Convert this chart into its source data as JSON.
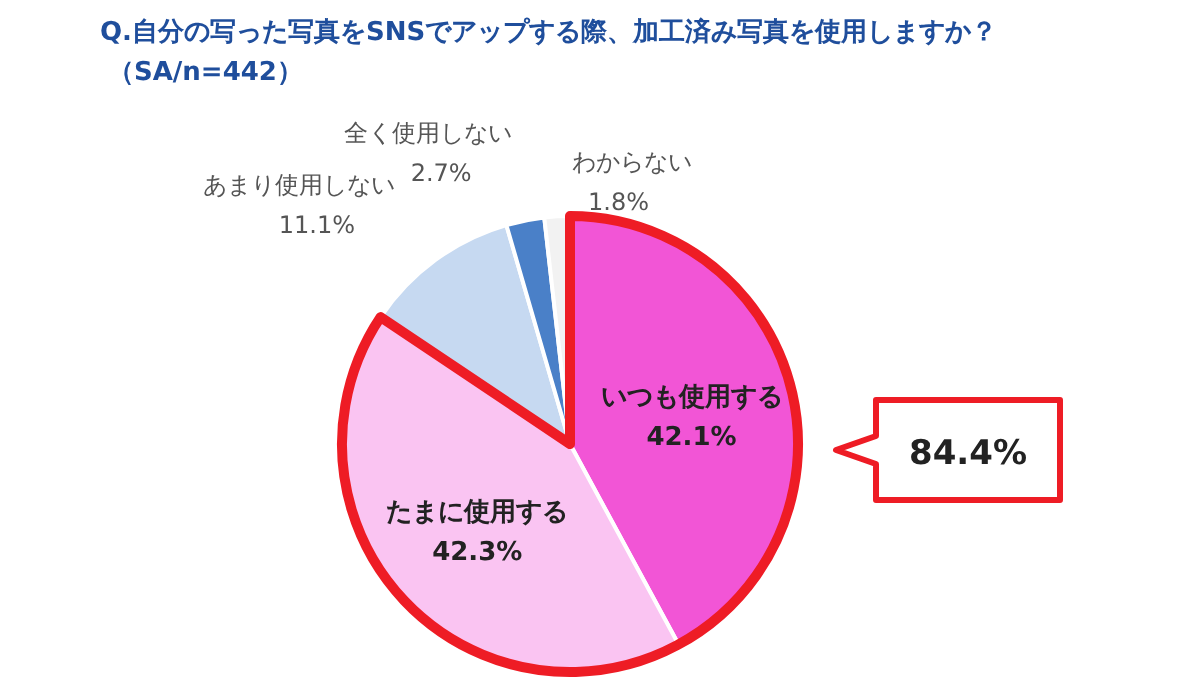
{
  "chart_data": {
    "type": "pie",
    "title": "Q.自分の写った写真をSNSでアップする際、加工済み写真を使用しますか？",
    "subtitle": "（SA/n=442）",
    "categories": [
      "いつも使用する",
      "たまに使用する",
      "あまり使用しない",
      "全く使用しない",
      "わからない"
    ],
    "values": [
      42.1,
      42.3,
      11.1,
      2.7,
      1.8
    ],
    "colors": [
      "#f255d6",
      "#fac4f2",
      "#c6d9f1",
      "#4a80c8",
      "#f2f2f2"
    ],
    "value_labels": [
      "42.1%",
      "42.3%",
      "11.1%",
      "2.7%",
      "1.8%"
    ],
    "annotations": [
      "84.4%"
    ]
  }
}
